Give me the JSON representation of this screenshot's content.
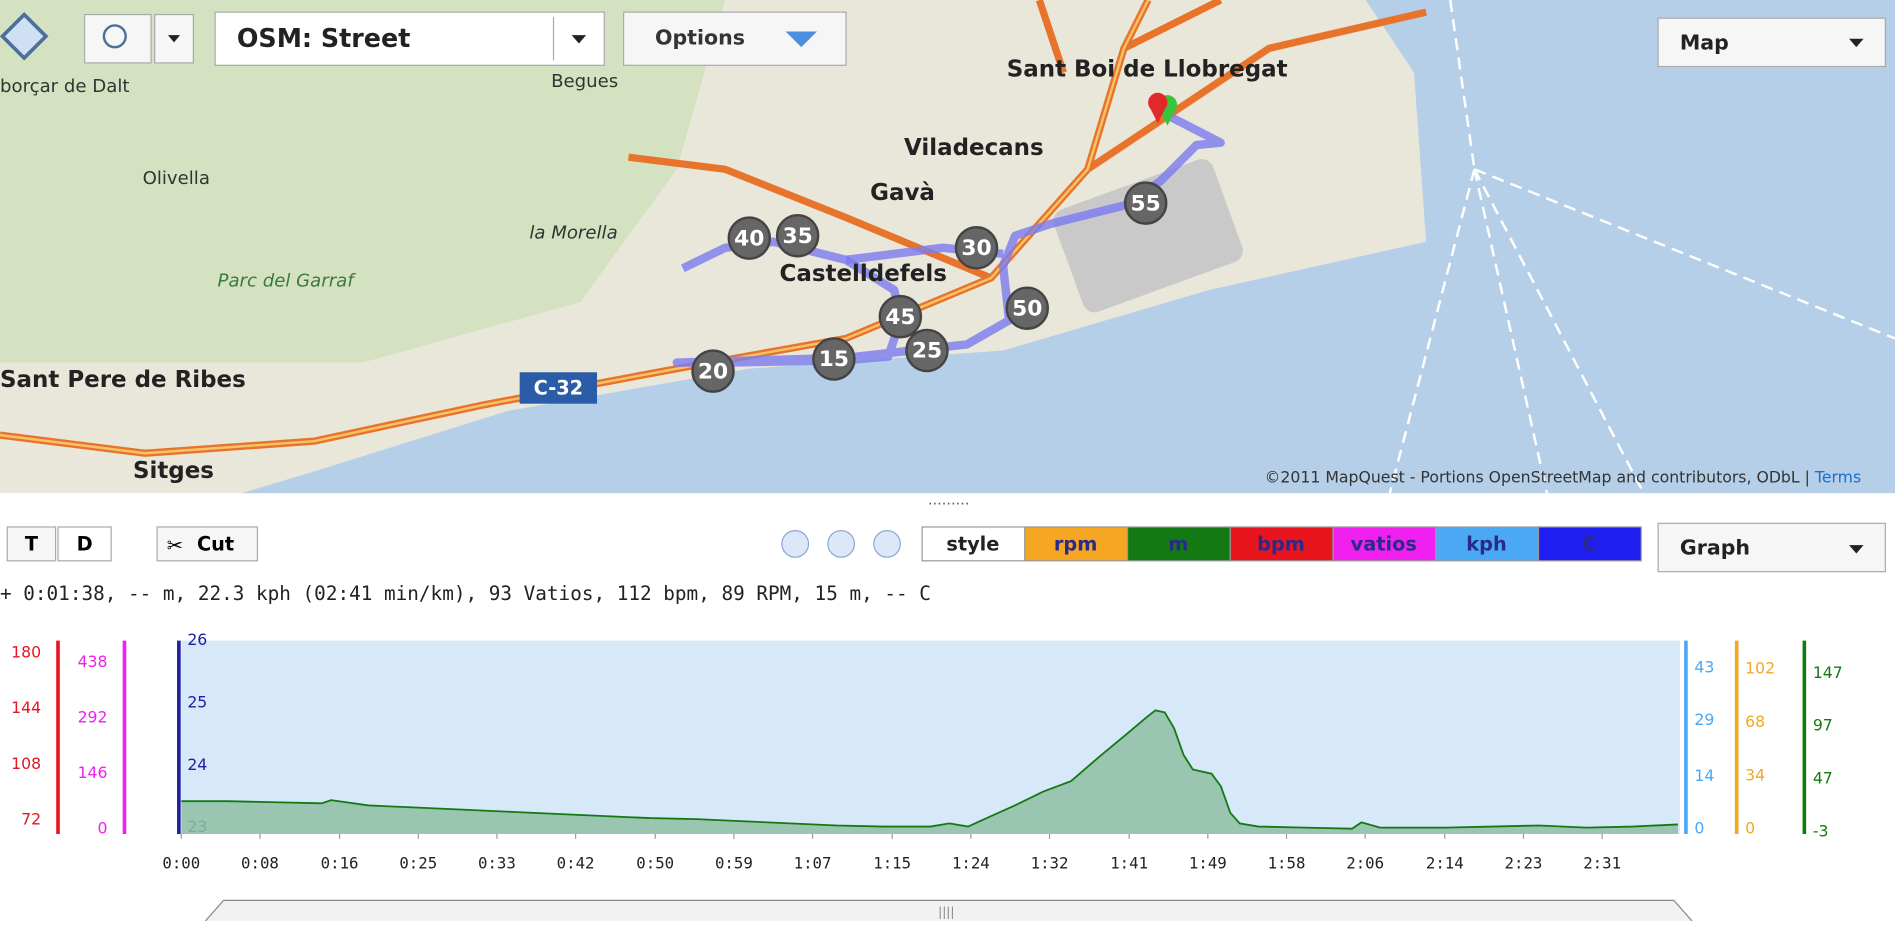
{
  "toolbar": {
    "layer": "OSM: Street",
    "options": "Options",
    "map_type": "Map"
  },
  "map": {
    "places": [
      "borçar de Dalt",
      "Begues",
      "Sant Boi de Llobregat",
      "Viladecans",
      "Olivella",
      "Gavà",
      "la Morella",
      "Castelldefels",
      "Parc del Garraf",
      "Sant Pere de Ribes",
      "Sitges"
    ],
    "road": "C-32",
    "markers": [
      "40",
      "35",
      "30",
      "55",
      "50",
      "45",
      "25",
      "15",
      "20"
    ],
    "attribution": "©2011 MapQuest - Portions  OpenStreetMap and contributors, ODbL |",
    "terms": "Terms"
  },
  "controls": {
    "t": "T",
    "d": "D",
    "cut": "Cut",
    "view": "Graph",
    "legend": [
      {
        "label": "style",
        "color": "#ffffff"
      },
      {
        "label": "rpm",
        "color": "#f5a623"
      },
      {
        "label": "m",
        "color": "#137a13"
      },
      {
        "label": "bpm",
        "color": "#e8141e"
      },
      {
        "label": "vatios",
        "color": "#f020f0"
      },
      {
        "label": "kph",
        "color": "#4aa8f5"
      },
      {
        "label": "C",
        "color": "#1e1ef0"
      }
    ]
  },
  "status": "+ 0:01:38, -- m, 22.3 kph (02:41 min/km), 93 Vatios, 112 bpm, 89 RPM, 15 m, -- C",
  "chart_data": {
    "type": "area",
    "xlim": [
      0,
      160
    ],
    "xticks": [
      {
        "value": 0,
        "label": "0:00"
      },
      {
        "value": 8.4,
        "label": "0:08"
      },
      {
        "value": 16.9,
        "label": "0:16"
      },
      {
        "value": 25.3,
        "label": "0:25"
      },
      {
        "value": 33.7,
        "label": "0:33"
      },
      {
        "value": 42.1,
        "label": "0:42"
      },
      {
        "value": 50.6,
        "label": "0:50"
      },
      {
        "value": 59,
        "label": "0:59"
      },
      {
        "value": 67.4,
        "label": "1:07"
      },
      {
        "value": 75.9,
        "label": "1:15"
      },
      {
        "value": 84.3,
        "label": "1:24"
      },
      {
        "value": 92.7,
        "label": "1:32"
      },
      {
        "value": 101.2,
        "label": "1:41"
      },
      {
        "value": 109.6,
        "label": "1:49"
      },
      {
        "value": 118,
        "label": "1:58"
      },
      {
        "value": 126.4,
        "label": "2:06"
      },
      {
        "value": 134.9,
        "label": "2:14"
      },
      {
        "value": 143.3,
        "label": "2:23"
      },
      {
        "value": 151.7,
        "label": "2:31"
      }
    ],
    "axes": [
      {
        "name": "bpm",
        "color": "#e8141e",
        "ylim": [
          63,
          188
        ],
        "yticks": [
          72,
          108,
          144,
          180
        ]
      },
      {
        "name": "vatios",
        "color": "#f020f0",
        "ylim": [
          -13,
          495
        ],
        "yticks": [
          0,
          146,
          292,
          438
        ]
      },
      {
        "name": "C",
        "color": "#1e1ea0",
        "ylim": [
          22.9,
          26
        ],
        "yticks": [
          23,
          24,
          25,
          26
        ]
      },
      {
        "name": "kph",
        "color": "#4aa8f5",
        "ylim": [
          -1.3,
          50.4
        ],
        "yticks": [
          0,
          14,
          29,
          43
        ]
      },
      {
        "name": "rpm",
        "color": "#f5a623",
        "ylim": [
          -3,
          120
        ],
        "yticks": [
          0,
          34,
          68,
          102
        ]
      },
      {
        "name": "m",
        "color": "#137a13",
        "fill": "#8fbfa4",
        "ylim": [
          -5,
          178
        ],
        "yticks": [
          -3,
          47,
          97,
          147
        ],
        "x": [
          0,
          5,
          10,
          15,
          16,
          20,
          25,
          30,
          35,
          40,
          45,
          50,
          55,
          60,
          65,
          70,
          75,
          80,
          82,
          84,
          86,
          89,
          92,
          95,
          98,
          101,
          103,
          104,
          105,
          106,
          107,
          108,
          110,
          111,
          112,
          113,
          115,
          120,
          125,
          126,
          128,
          135,
          140,
          145,
          150,
          155,
          159.8
        ],
        "values": [
          26,
          26,
          25,
          24,
          27,
          22,
          20,
          18,
          16,
          14,
          12,
          10,
          9,
          7,
          5,
          3,
          2,
          2,
          5,
          2,
          10,
          22,
          35,
          45,
          68,
          90,
          105,
          112,
          110,
          95,
          70,
          56,
          52,
          40,
          15,
          5,
          2,
          1,
          0,
          6,
          1,
          1,
          2,
          3,
          1,
          2,
          4
        ]
      }
    ]
  }
}
